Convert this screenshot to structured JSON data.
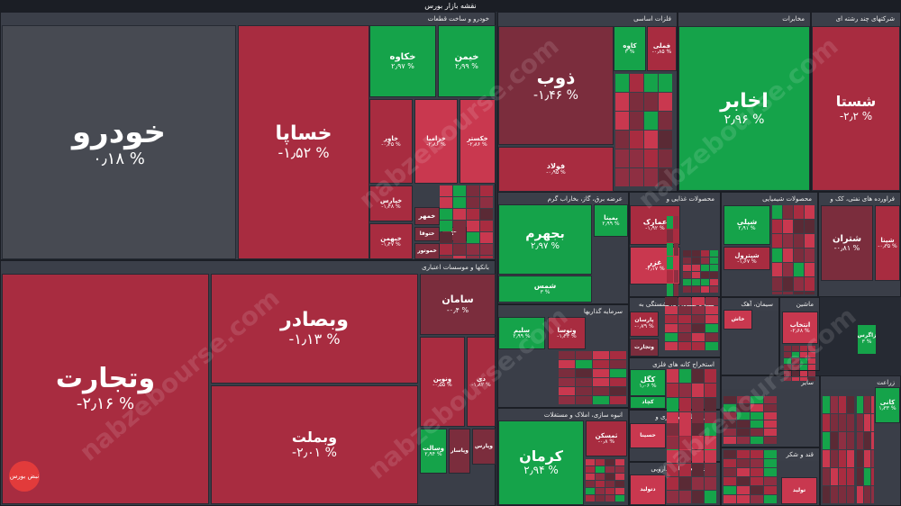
{
  "title": "نقشه بازار بورس",
  "colors": {
    "green": "#15a34a",
    "lightgreen": "#16b655",
    "red": "#c9384f",
    "darkred": "#a82c40",
    "maroon": "#7b2d3d",
    "gray": "#474a52"
  },
  "watermark": "nabzebourse.com",
  "logo_text": "نبض بورس",
  "sectors": [
    {
      "id": "auto",
      "label": "خودرو و ساخت قطعات"
    },
    {
      "id": "banks",
      "label": "بانکها و موسسات اعتباری"
    },
    {
      "id": "metals",
      "label": "فلزات اساسی"
    },
    {
      "id": "telecom",
      "label": "مخابرات"
    },
    {
      "id": "multi",
      "label": "شرکتهای چند رشته ای"
    },
    {
      "id": "utility",
      "label": "عرضه برق، گاز، بخاراب گرم"
    },
    {
      "id": "food",
      "label": "محصولات غذایی و"
    },
    {
      "id": "chemical",
      "label": "محصولات شیمیایی"
    },
    {
      "id": "oil",
      "label": "فراورده های نفتی، کک و"
    },
    {
      "id": "invest",
      "label": "سرمایه گذاریها"
    },
    {
      "id": "insurance",
      "label": "بیمه و صندوق بازنشستگی به"
    },
    {
      "id": "cement",
      "label": "سیمان، آهک"
    },
    {
      "id": "machinery",
      "label": "ماشین"
    },
    {
      "id": "building",
      "label": "انبوه سازی، املاک و مستغلات"
    },
    {
      "id": "mining",
      "label": "استخراج کانه های فلزی"
    },
    {
      "id": "transport",
      "label": "حمل ونقل، انبارداری و"
    },
    {
      "id": "pharma",
      "label": "مواد و محصولات دارویی"
    },
    {
      "id": "other",
      "label": "سایر"
    },
    {
      "id": "sugar",
      "label": "قند و شکر"
    },
    {
      "id": "agri",
      "label": "زراعت"
    }
  ],
  "tiles": [
    {
      "sym": "خودرو",
      "pct": "% 0.18",
      "c": "gray"
    },
    {
      "sym": "خساپا",
      "pct": "% 1.52-",
      "c": "darkred"
    },
    {
      "sym": "خکاوه",
      "pct": "% 2.97",
      "c": "green"
    },
    {
      "sym": "خیمن",
      "pct": "% 2.99",
      "c": "green"
    },
    {
      "sym": "خاور",
      "pct": "% 0.45-",
      "c": "darkred"
    },
    {
      "sym": "خزامیا",
      "pct": "% 2.86-",
      "c": "red"
    },
    {
      "sym": "خکستر",
      "pct": "% 2.86-",
      "c": "red"
    },
    {
      "sym": "خپارس",
      "pct": "% 1.48-",
      "c": "darkred"
    },
    {
      "sym": "خبهمن",
      "pct": "% 1.47-",
      "c": "darkred"
    },
    {
      "sym": "خمهر",
      "pct": "",
      "c": "maroon"
    },
    {
      "sym": "ختوقا",
      "pct": "",
      "c": "maroon"
    },
    {
      "sym": "خکار",
      "pct": "",
      "c": "maroon"
    },
    {
      "sym": "خموتور",
      "pct": "",
      "c": "maroon"
    },
    {
      "sym": "وتجارت",
      "pct": "% 2.16-",
      "c": "darkred"
    },
    {
      "sym": "وبصادر",
      "pct": "% 1.13-",
      "c": "darkred"
    },
    {
      "sym": "وبملت",
      "pct": "% 2.01-",
      "c": "darkred"
    },
    {
      "sym": "سامان",
      "pct": "% 0.4-",
      "c": "maroon"
    },
    {
      "sym": "ونوین",
      "pct": "% 0.55-",
      "c": "darkred"
    },
    {
      "sym": "دی",
      "pct": "% 1.82-",
      "c": "darkred"
    },
    {
      "sym": "وسالت",
      "pct": "% 2.94",
      "c": "green"
    },
    {
      "sym": "وپاسار",
      "pct": "",
      "c": "maroon"
    },
    {
      "sym": "وپارس",
      "pct": "",
      "c": "maroon"
    },
    {
      "sym": "ذوب",
      "pct": "% 1.46-",
      "c": "maroon"
    },
    {
      "sym": "فولاد",
      "pct": "% 0.95-",
      "c": "darkred"
    },
    {
      "sym": "کاوه",
      "pct": "% 3",
      "c": "green"
    },
    {
      "sym": "فملی",
      "pct": "% 0.85-",
      "c": "darkred"
    },
    {
      "sym": "اخابر",
      "pct": "% 2.96",
      "c": "green"
    },
    {
      "sym": "شستا",
      "pct": "% 2.2-",
      "c": "darkred"
    },
    {
      "sym": "بجهرم",
      "pct": "% 2.97",
      "c": "green"
    },
    {
      "sym": "شمس",
      "pct": "% 3",
      "c": "green"
    },
    {
      "sym": "بمپنا",
      "pct": "% 2.99",
      "c": "green"
    },
    {
      "sym": "عمارک",
      "pct": "% 1.92-",
      "c": "darkred"
    },
    {
      "sym": "غزر",
      "pct": "% 4.17-",
      "c": "red"
    },
    {
      "sym": "شپلی",
      "pct": "% 2.91",
      "c": "green"
    },
    {
      "sym": "شپترول",
      "pct": "% 1.67-",
      "c": "darkred"
    },
    {
      "sym": "شتران",
      "pct": "% 0.81-",
      "c": "maroon"
    },
    {
      "sym": "شپنا",
      "pct": "% 0.35-",
      "c": "darkred"
    },
    {
      "sym": "وتوسا",
      "pct": "% 1.33-",
      "c": "darkred"
    },
    {
      "sym": "سلیم",
      "pct": "% 2.99",
      "c": "green"
    },
    {
      "sym": "پارسان",
      "pct": "% 0.79-",
      "c": "darkred"
    },
    {
      "sym": "وتجارت",
      "pct": "",
      "c": "maroon"
    },
    {
      "sym": "کرمان",
      "pct": "% 2.94",
      "c": "green"
    },
    {
      "sym": "ثمسکن",
      "pct": "% 0.8-",
      "c": "darkred"
    },
    {
      "sym": "کگل",
      "pct": "% 1.06",
      "c": "green"
    },
    {
      "sym": "کچاد",
      "pct": "",
      "c": "green"
    },
    {
      "sym": "حسینا",
      "pct": "",
      "c": "red"
    },
    {
      "sym": "دتولید",
      "pct": "",
      "c": "red"
    },
    {
      "sym": "خاش",
      "pct": "",
      "c": "red"
    },
    {
      "sym": "انتخاب",
      "pct": "% 2.68-",
      "c": "red"
    },
    {
      "sym": "زاگرس",
      "pct": "% 3",
      "c": "green"
    },
    {
      "sym": "کانی",
      "pct": "% 1.33",
      "c": "green"
    },
    {
      "sym": "تولید",
      "pct": "",
      "c": "red"
    }
  ]
}
